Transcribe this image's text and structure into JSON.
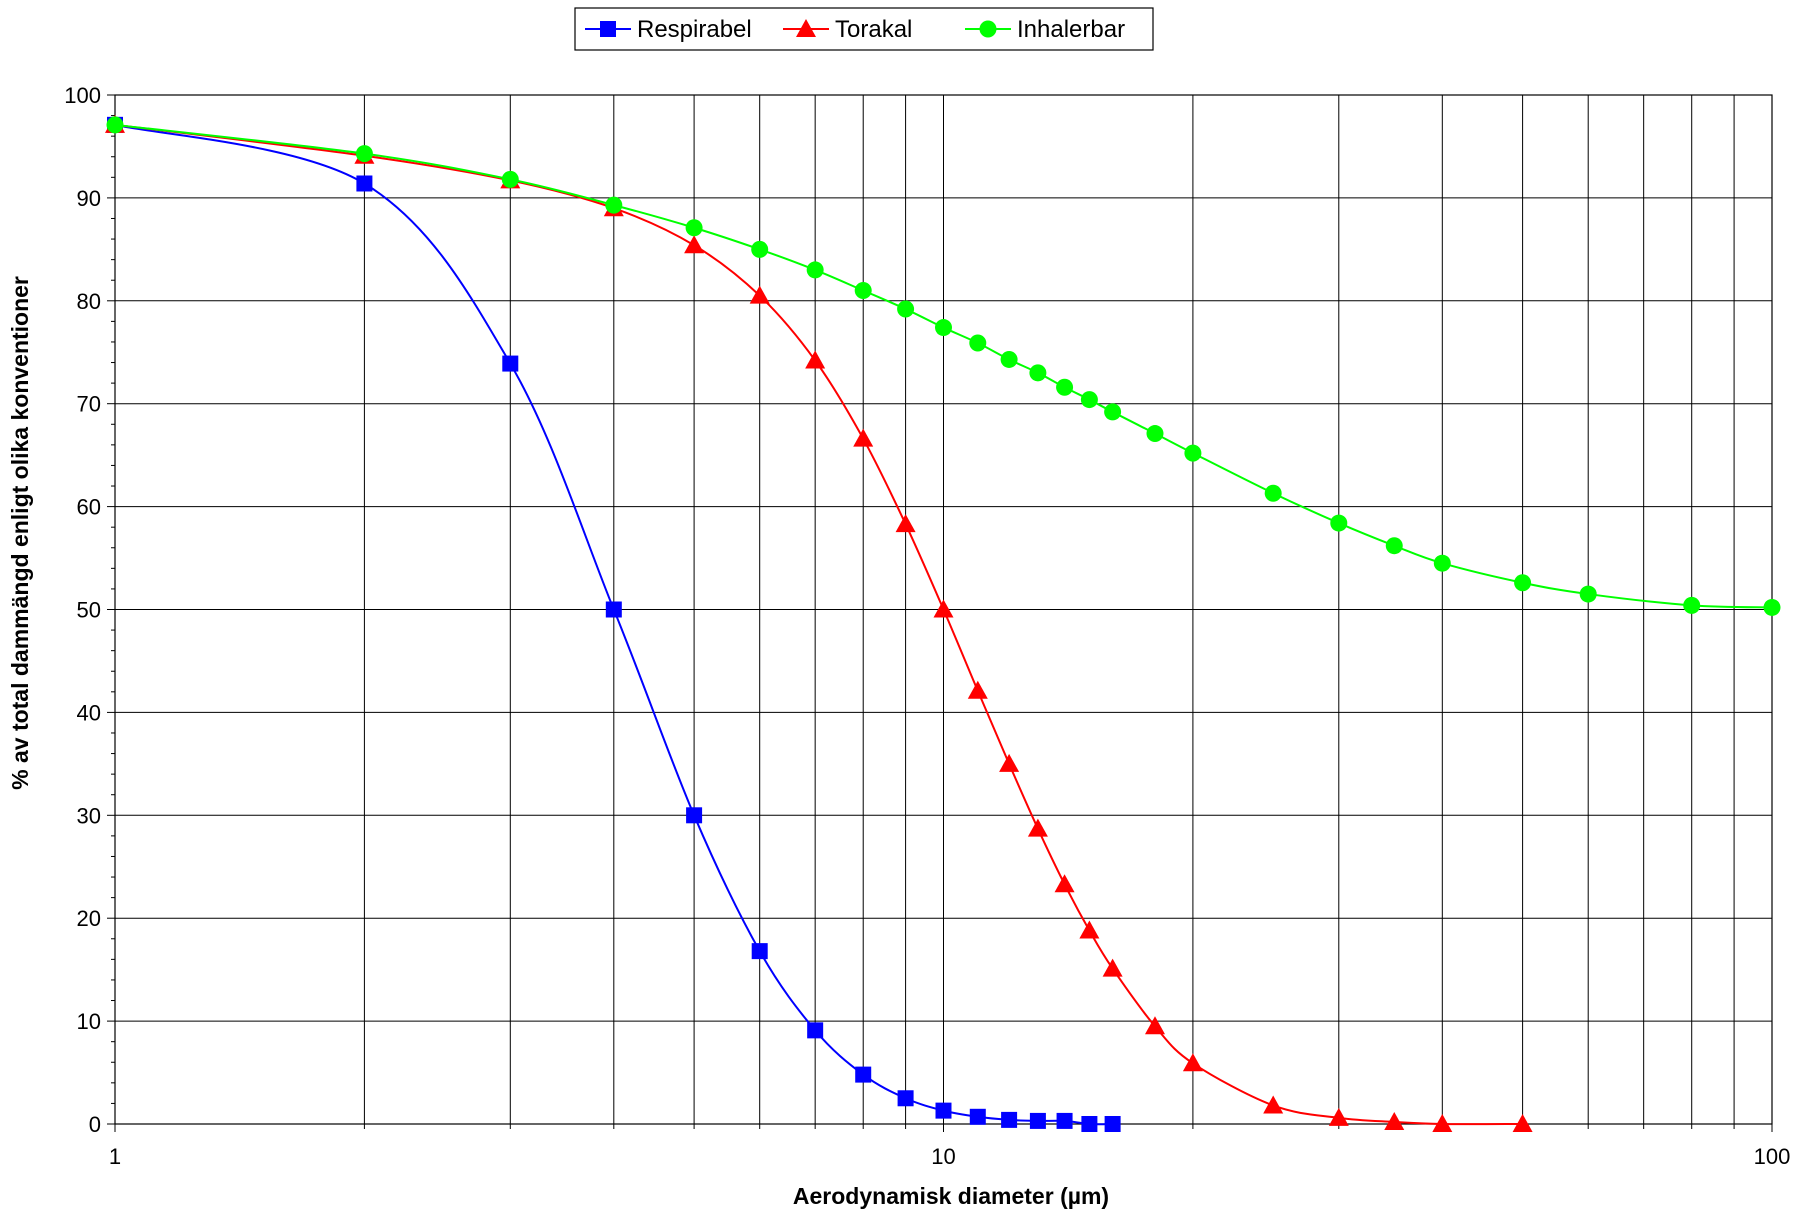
{
  "chart_data": {
    "type": "line",
    "title": "",
    "xlabel": "Aerodynamisk diameter (µm)",
    "ylabel": "% av total dammängd enligt olika konventioner",
    "x_scale": "log",
    "xlim": [
      1,
      100
    ],
    "ylim": [
      0,
      100
    ],
    "x_ticks": [
      1,
      10,
      100
    ],
    "x_tick_labels": [
      "1",
      "10",
      "100"
    ],
    "y_ticks": [
      0,
      10,
      20,
      30,
      40,
      50,
      60,
      70,
      80,
      90,
      100
    ],
    "y_tick_labels": [
      "0",
      "10",
      "20",
      "30",
      "40",
      "50",
      "60",
      "70",
      "80",
      "90",
      "100"
    ],
    "grid": true,
    "legend_position": "top",
    "series": [
      {
        "name": "Respirabel",
        "color": "#0000ff",
        "marker": "square",
        "x": [
          1,
          2,
          3,
          4,
          5,
          6,
          7,
          8,
          9,
          10,
          11,
          12,
          13,
          14,
          15,
          16
        ],
        "y": [
          97.1,
          91.4,
          73.9,
          50.0,
          30.0,
          16.8,
          9.1,
          4.8,
          2.5,
          1.3,
          0.7,
          0.4,
          0.3,
          0.3,
          0.0,
          0.0
        ]
      },
      {
        "name": "Torakal",
        "color": "#ff0000",
        "marker": "triangle",
        "x": [
          1,
          2,
          3,
          4,
          5,
          6,
          7,
          8,
          9,
          10,
          11,
          12,
          13,
          14,
          15,
          16,
          18,
          20,
          25,
          30,
          35,
          40,
          50
        ],
        "y": [
          97.1,
          94.1,
          91.7,
          89.0,
          85.4,
          80.5,
          74.2,
          66.6,
          58.3,
          50.0,
          42.1,
          35.0,
          28.7,
          23.3,
          18.8,
          15.1,
          9.5,
          5.9,
          1.8,
          0.6,
          0.2,
          0.0,
          0.0
        ]
      },
      {
        "name": "Inhalerbar",
        "color": "#00ff00",
        "marker": "circle",
        "x": [
          1,
          2,
          3,
          4,
          5,
          6,
          7,
          8,
          9,
          10,
          11,
          12,
          13,
          14,
          15,
          16,
          18,
          20,
          25,
          30,
          35,
          40,
          50,
          60,
          80,
          100
        ],
        "y": [
          97.1,
          94.3,
          91.8,
          89.3,
          87.1,
          85.0,
          83.0,
          81.0,
          79.2,
          77.4,
          75.9,
          74.3,
          73.0,
          71.6,
          70.4,
          69.2,
          67.1,
          65.2,
          61.3,
          58.4,
          56.2,
          54.5,
          52.6,
          51.5,
          50.4,
          50.2
        ]
      }
    ]
  }
}
